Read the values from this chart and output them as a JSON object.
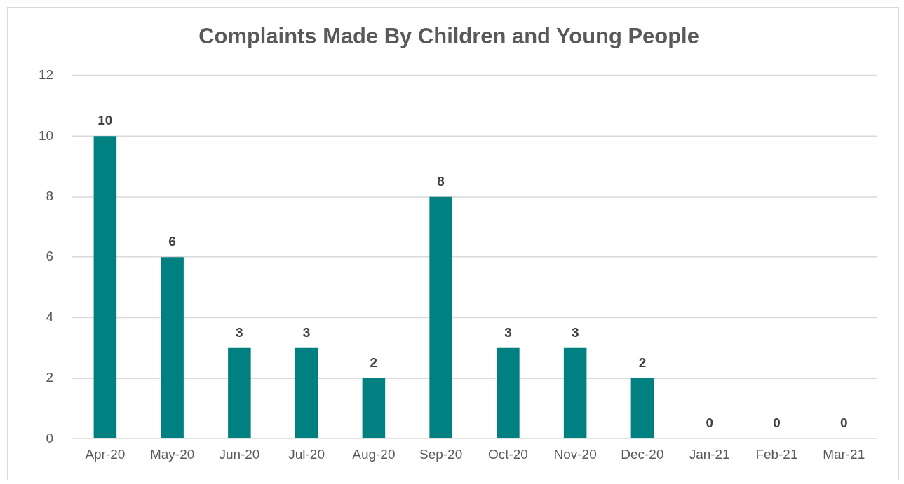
{
  "chart_data": {
    "type": "bar",
    "title": "Complaints Made By Children and Young People",
    "categories": [
      "Apr-20",
      "May-20",
      "Jun-20",
      "Jul-20",
      "Aug-20",
      "Sep-20",
      "Oct-20",
      "Nov-20",
      "Dec-20",
      "Jan-21",
      "Feb-21",
      "Mar-21"
    ],
    "values": [
      10,
      6,
      3,
      3,
      2,
      8,
      3,
      3,
      2,
      0,
      0,
      0
    ],
    "color": "#008080",
    "ylim": [
      0,
      12
    ],
    "yticks": [
      0,
      2,
      4,
      6,
      8,
      10,
      12
    ],
    "grid": "y",
    "data_labels": true
  }
}
